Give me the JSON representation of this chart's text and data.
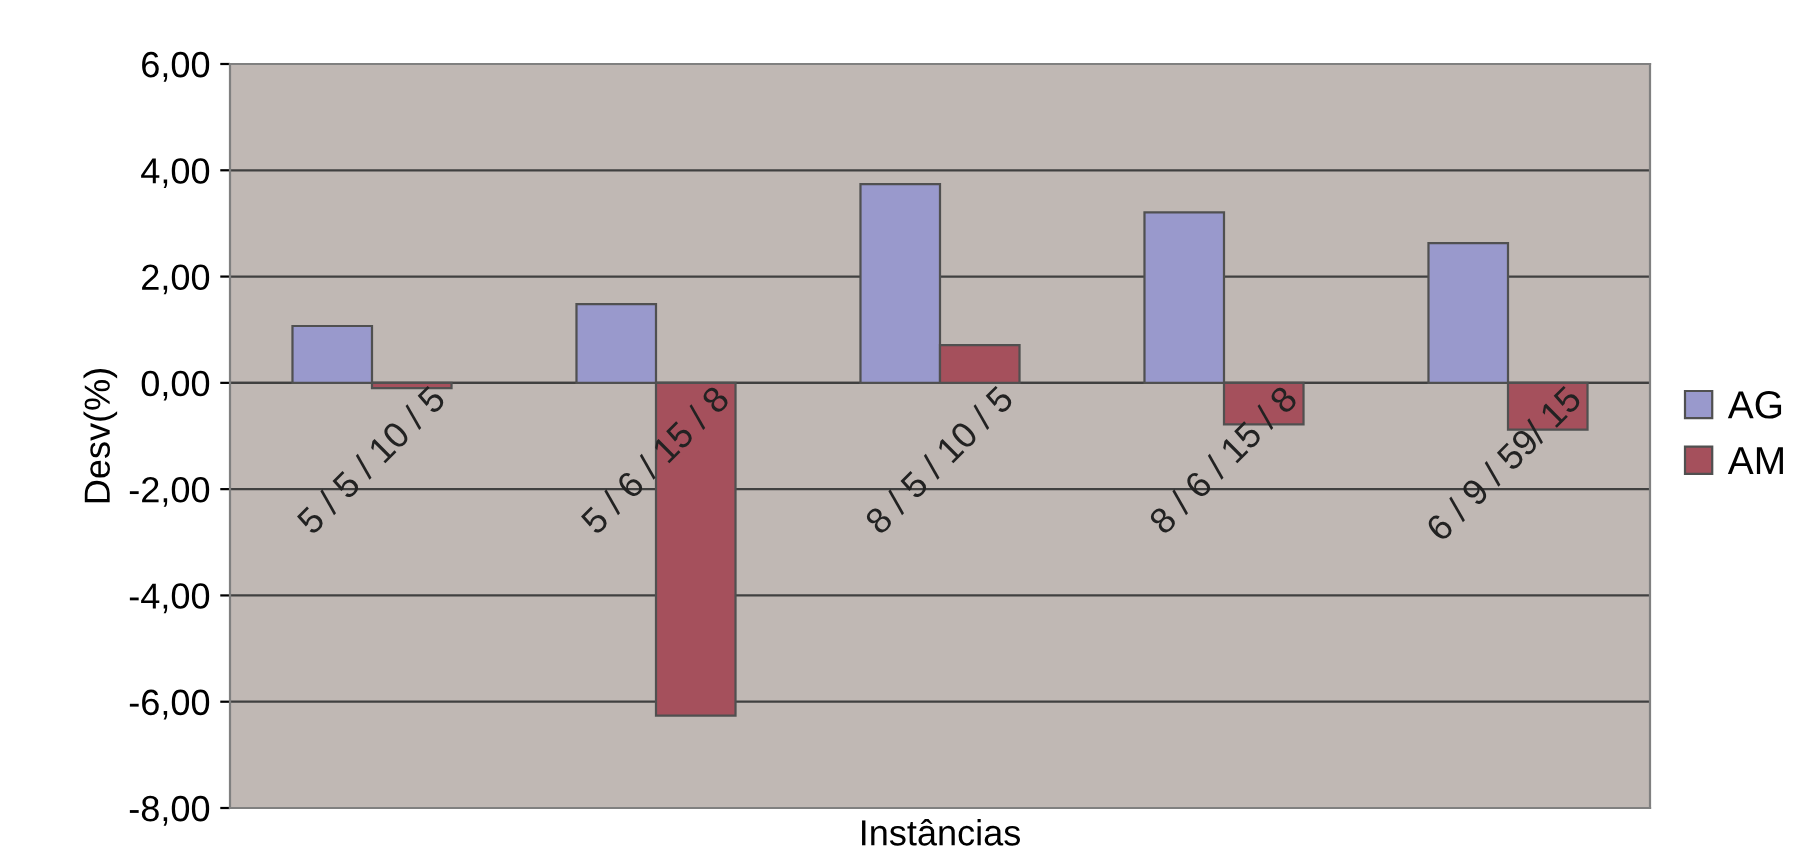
{
  "chart_data": {
    "type": "bar",
    "xlabel": "Instâncias",
    "ylabel": "Desv(%)",
    "categories": [
      "5 / 5 / 10 / 5",
      "5 / 6 / 15 / 8",
      "8 / 5 / 10 / 5",
      "8 / 6 / 15 / 8",
      "6 / 9 / 59/ 15"
    ],
    "series": [
      {
        "name": "AG",
        "color": "#9999cc",
        "values": [
          1.07,
          1.48,
          3.74,
          3.21,
          2.63
        ]
      },
      {
        "name": "AM",
        "color": "#a5505c",
        "values": [
          -0.1,
          -6.26,
          0.71,
          -0.78,
          -0.88
        ]
      }
    ],
    "ylim": [
      -8,
      6
    ],
    "yticks": [
      {
        "value": -8,
        "label": "-8,00"
      },
      {
        "value": -6,
        "label": "-6,00"
      },
      {
        "value": -4,
        "label": "-4,00"
      },
      {
        "value": -2,
        "label": "-2,00"
      },
      {
        "value": 0,
        "label": "0,00"
      },
      {
        "value": 2,
        "label": "2,00"
      },
      {
        "value": 4,
        "label": "4,00"
      },
      {
        "value": 6,
        "label": "6,00"
      }
    ],
    "grid": "y",
    "legend": "right"
  }
}
